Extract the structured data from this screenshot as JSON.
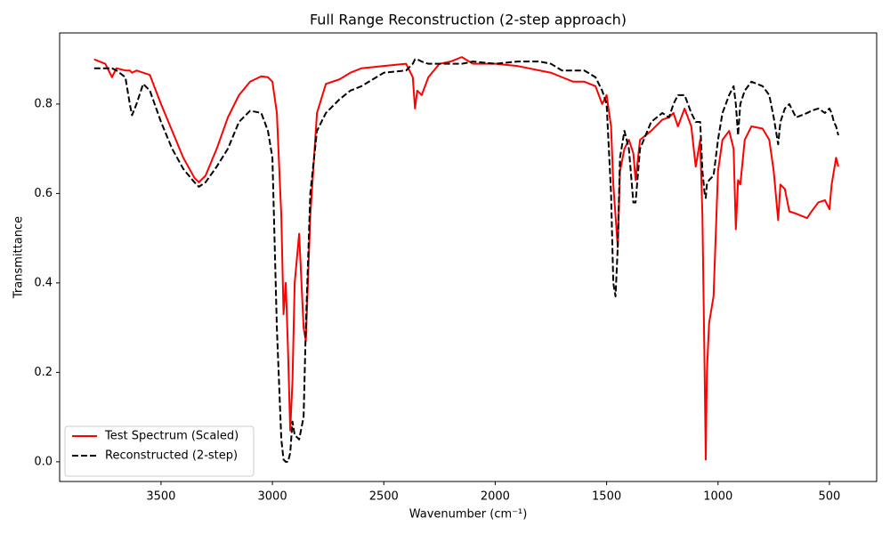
{
  "chart_data": {
    "type": "line",
    "title": "Full Range Reconstruction (2-step approach)",
    "x_label": "Wavenumber (cm⁻¹)",
    "y_label": "Transmittance",
    "x": [
      3800,
      3750,
      3720,
      3700,
      3660,
      3640,
      3630,
      3610,
      3580,
      3550,
      3500,
      3450,
      3400,
      3350,
      3330,
      3300,
      3250,
      3200,
      3150,
      3100,
      3050,
      3020,
      3000,
      2980,
      2960,
      2950,
      2940,
      2930,
      2920,
      2910,
      2900,
      2880,
      2860,
      2850,
      2830,
      2800,
      2760,
      2700,
      2650,
      2600,
      2500,
      2400,
      2370,
      2360,
      2350,
      2330,
      2300,
      2250,
      2200,
      2150,
      2100,
      2000,
      1900,
      1850,
      1800,
      1750,
      1700,
      1650,
      1600,
      1550,
      1520,
      1500,
      1480,
      1470,
      1460,
      1450,
      1440,
      1420,
      1400,
      1380,
      1370,
      1350,
      1300,
      1250,
      1220,
      1200,
      1180,
      1150,
      1120,
      1100,
      1080,
      1070,
      1060,
      1055,
      1050,
      1040,
      1020,
      1000,
      980,
      950,
      930,
      920,
      910,
      900,
      880,
      850,
      800,
      770,
      750,
      730,
      720,
      700,
      680,
      650,
      600,
      580,
      550,
      520,
      500,
      490,
      480,
      470,
      460
    ],
    "series": [
      {
        "name": "Test Spectrum (Scaled)",
        "color": "#ff0000",
        "linestyle": "solid",
        "values": [
          0.9,
          0.89,
          0.86,
          0.88,
          0.875,
          0.875,
          0.87,
          0.875,
          0.87,
          0.865,
          0.8,
          0.74,
          0.68,
          0.635,
          0.625,
          0.64,
          0.7,
          0.77,
          0.82,
          0.85,
          0.862,
          0.86,
          0.85,
          0.78,
          0.55,
          0.33,
          0.4,
          0.25,
          0.07,
          0.18,
          0.4,
          0.51,
          0.3,
          0.27,
          0.55,
          0.78,
          0.845,
          0.855,
          0.87,
          0.88,
          0.885,
          0.89,
          0.86,
          0.79,
          0.83,
          0.82,
          0.86,
          0.89,
          0.895,
          0.905,
          0.89,
          0.89,
          0.885,
          0.88,
          0.875,
          0.87,
          0.86,
          0.85,
          0.85,
          0.84,
          0.8,
          0.82,
          0.75,
          0.62,
          0.55,
          0.48,
          0.65,
          0.7,
          0.72,
          0.69,
          0.63,
          0.72,
          0.74,
          0.765,
          0.77,
          0.78,
          0.75,
          0.79,
          0.75,
          0.66,
          0.72,
          0.55,
          0.2,
          0.005,
          0.2,
          0.31,
          0.37,
          0.65,
          0.72,
          0.74,
          0.7,
          0.52,
          0.63,
          0.62,
          0.72,
          0.75,
          0.745,
          0.72,
          0.65,
          0.54,
          0.62,
          0.61,
          0.56,
          0.555,
          0.545,
          0.56,
          0.58,
          0.585,
          0.565,
          0.62,
          0.65,
          0.68,
          0.66
        ]
      },
      {
        "name": "Reconstructed (2-step)",
        "color": "#000000",
        "linestyle": "dashed",
        "values": [
          0.88,
          0.88,
          0.88,
          0.875,
          0.86,
          0.8,
          0.775,
          0.8,
          0.845,
          0.83,
          0.76,
          0.7,
          0.655,
          0.625,
          0.615,
          0.625,
          0.66,
          0.7,
          0.76,
          0.785,
          0.78,
          0.74,
          0.68,
          0.3,
          0.05,
          0.005,
          0,
          0,
          0.02,
          0.09,
          0.06,
          0.05,
          0.1,
          0.3,
          0.6,
          0.74,
          0.78,
          0.81,
          0.83,
          0.84,
          0.87,
          0.875,
          0.89,
          0.9,
          0.9,
          0.895,
          0.89,
          0.89,
          0.89,
          0.89,
          0.895,
          0.89,
          0.895,
          0.895,
          0.895,
          0.89,
          0.875,
          0.875,
          0.875,
          0.86,
          0.83,
          0.8,
          0.6,
          0.4,
          0.37,
          0.48,
          0.68,
          0.74,
          0.7,
          0.58,
          0.58,
          0.7,
          0.76,
          0.78,
          0.77,
          0.8,
          0.82,
          0.82,
          0.78,
          0.76,
          0.76,
          0.65,
          0.6,
          0.59,
          0.62,
          0.63,
          0.64,
          0.72,
          0.78,
          0.82,
          0.84,
          0.8,
          0.73,
          0.8,
          0.83,
          0.85,
          0.84,
          0.82,
          0.77,
          0.71,
          0.76,
          0.79,
          0.8,
          0.77,
          0.78,
          0.785,
          0.79,
          0.78,
          0.79,
          0.78,
          0.76,
          0.75,
          0.73
        ]
      }
    ],
    "xlim": [
      3955,
      288
    ],
    "xticks": [
      3500,
      3000,
      2500,
      2000,
      1500,
      1000,
      500
    ],
    "ylim": [
      -0.044,
      0.959
    ],
    "yticks": [
      {
        "value": 0,
        "label": "0.0"
      },
      0.2,
      0.4,
      0.6,
      0.8
    ],
    "legend": "lower left"
  }
}
